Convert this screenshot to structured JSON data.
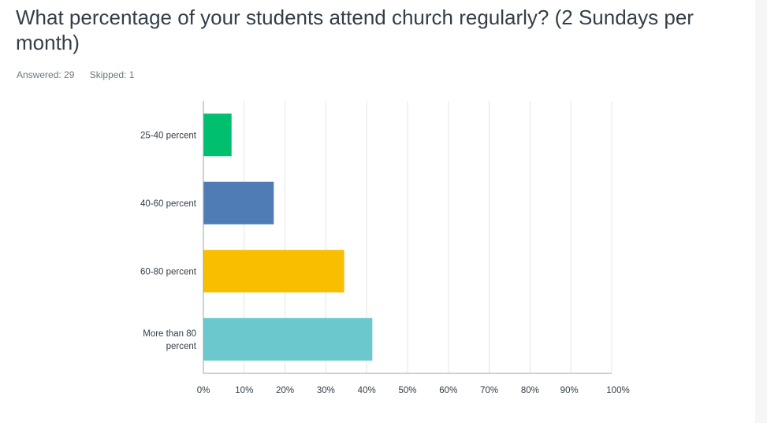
{
  "question": {
    "title": "What percentage of your students attend church regularly? (2 Sundays per month)",
    "answered": "Answered: 29",
    "skipped": "Skipped: 1"
  },
  "colors": {
    "series": [
      "#00bf6f",
      "#507cb6",
      "#f9be00",
      "#6bc8cd"
    ],
    "grid": "#e3e6e8",
    "axis": "#9aa3a8"
  },
  "chart_data": {
    "type": "bar",
    "orientation": "horizontal",
    "categories": [
      [
        "25-40 percent"
      ],
      [
        "40-60 percent"
      ],
      [
        "60-80 percent"
      ],
      [
        "More than 80",
        "percent"
      ]
    ],
    "values": [
      6.9,
      17.24,
      34.48,
      41.38
    ],
    "xlim": [
      0,
      100
    ],
    "ticks": [
      "0%",
      "10%",
      "20%",
      "30%",
      "40%",
      "50%",
      "60%",
      "70%",
      "80%",
      "90%",
      "100%"
    ],
    "grid": true,
    "title": "",
    "xlabel": "",
    "ylabel": ""
  }
}
